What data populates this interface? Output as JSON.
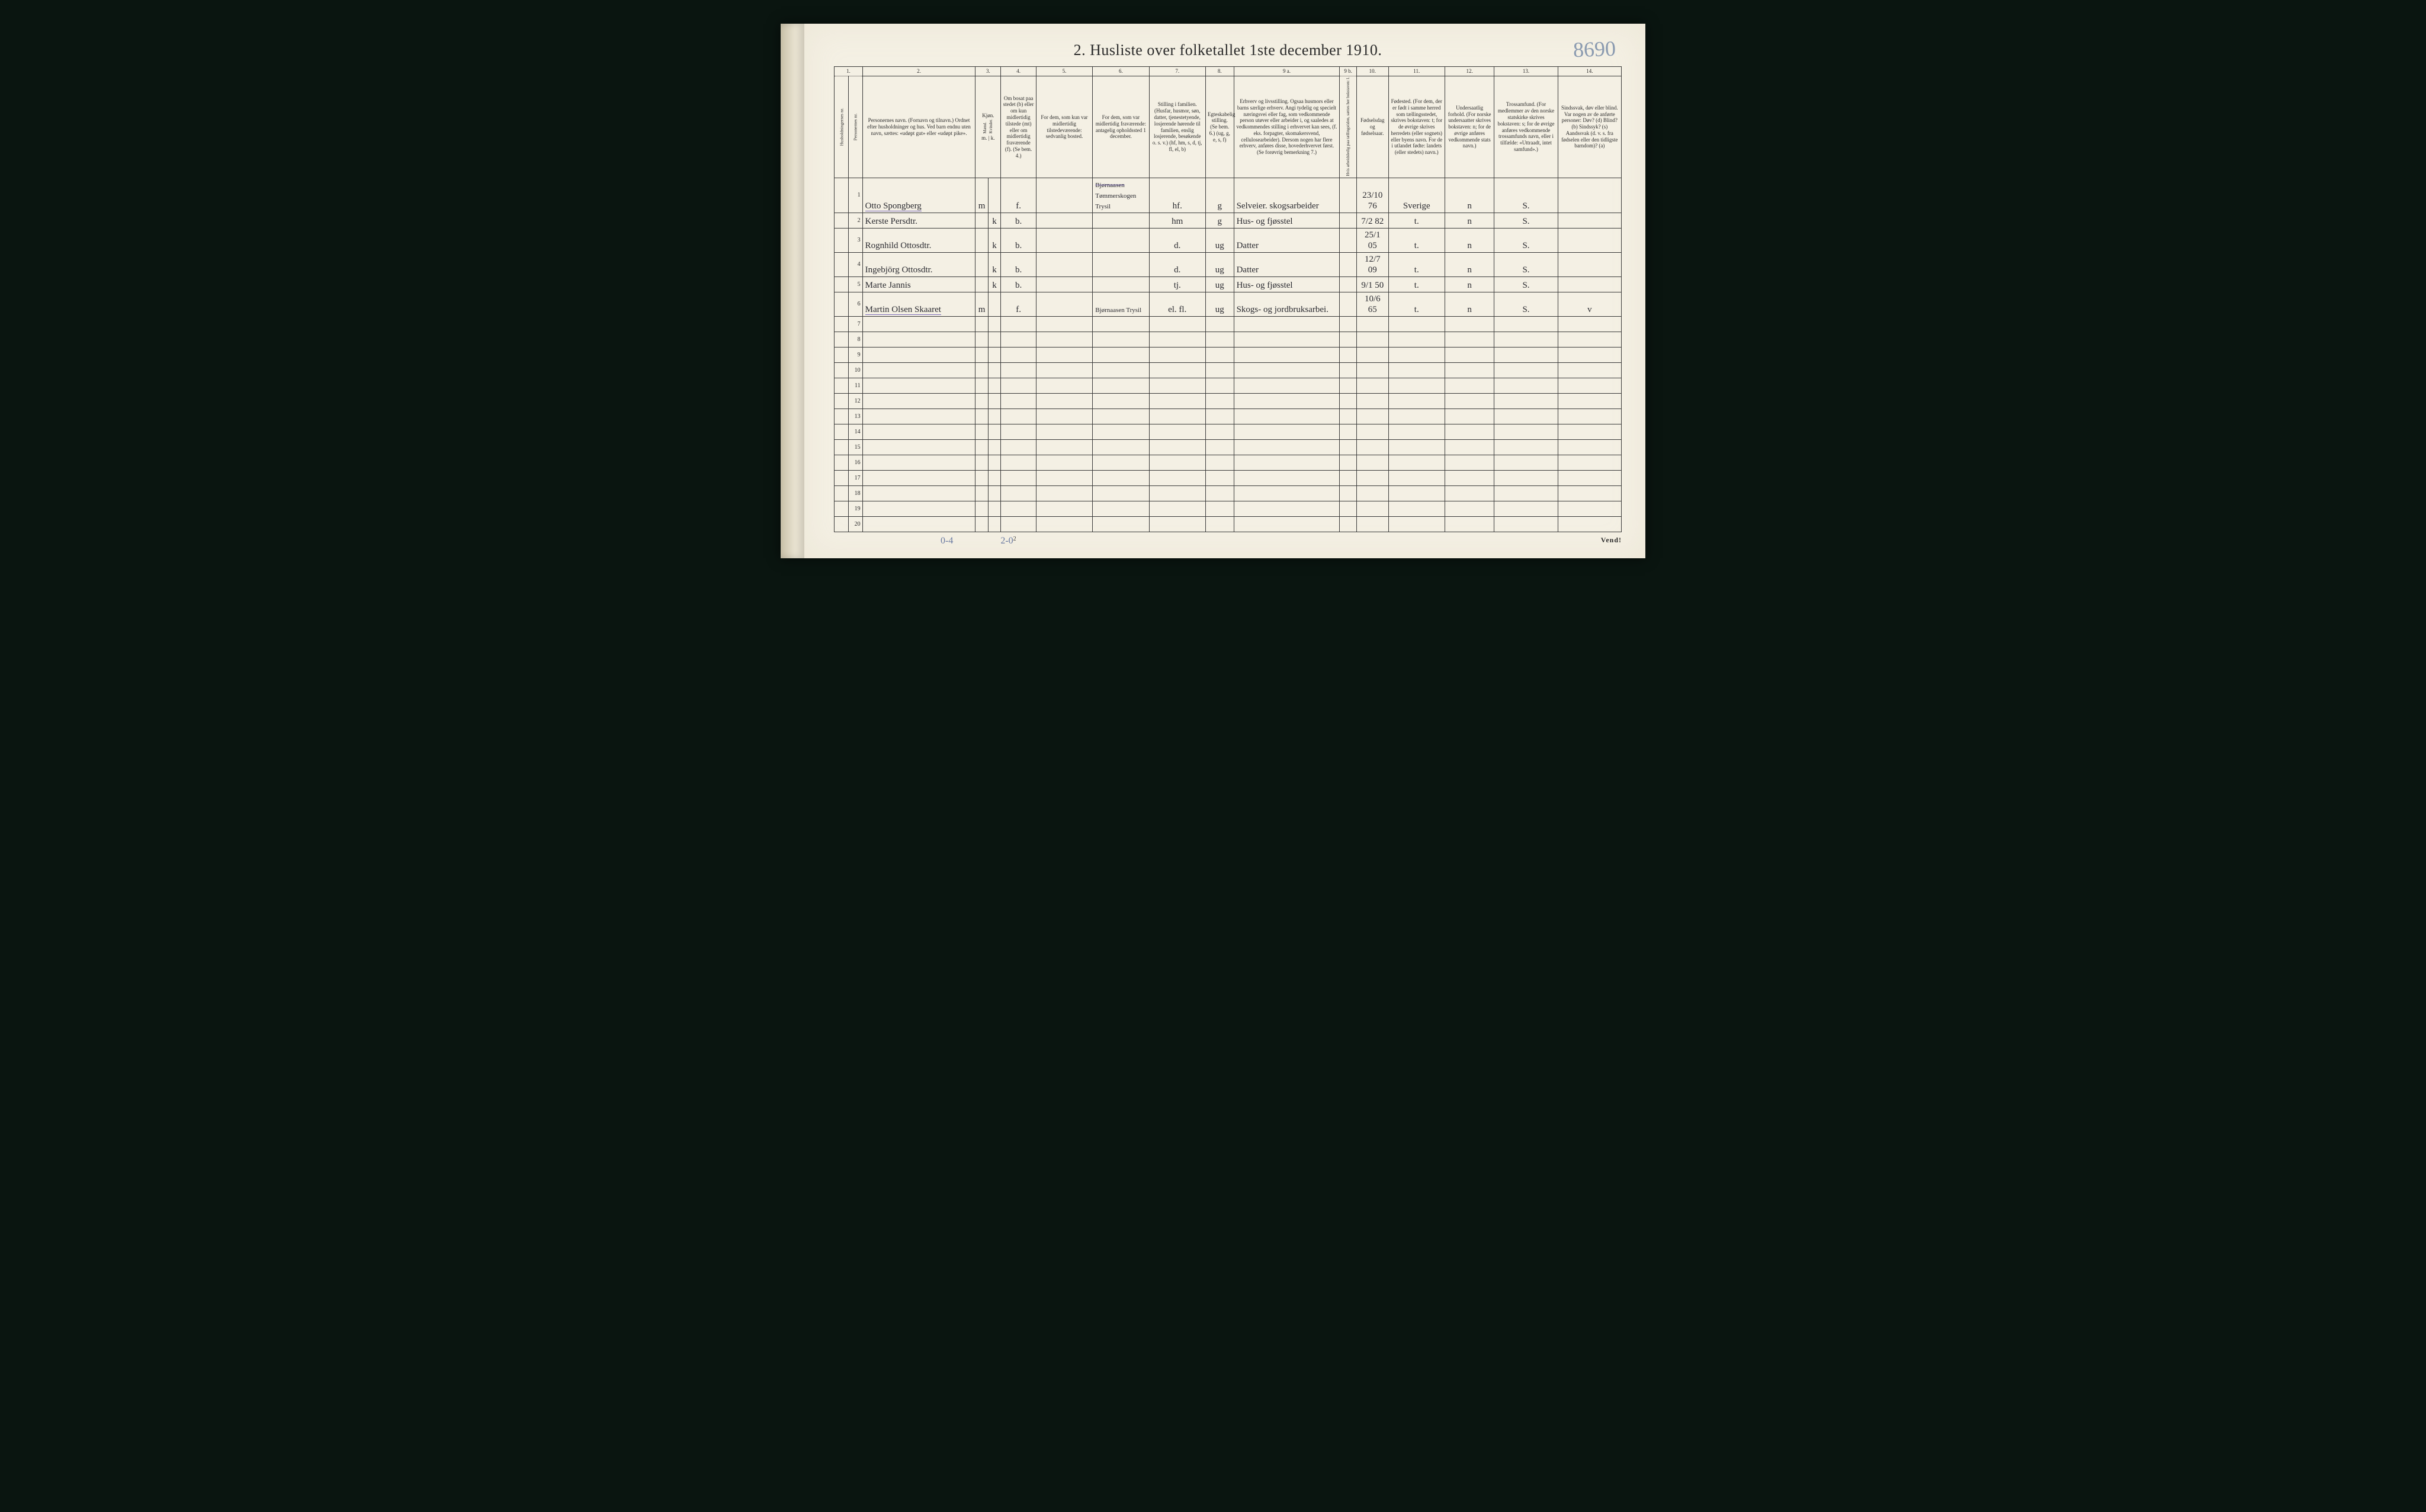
{
  "page": {
    "title": "2.  Husliste over folketallet 1ste december 1910.",
    "handwritten_corner": "8690",
    "printed_page_number": "2",
    "vend": "Vend!",
    "footer_notes": {
      "left": "0-4",
      "middle": "2-0"
    },
    "background_color": "#f4f0e4",
    "ink_color": "#2a2a2a",
    "handwriting_color": "#2a2a30",
    "purple_underline": "#7a6ab8",
    "border_color": "#3a3a3a"
  },
  "columns": {
    "numbers": [
      "1.",
      "2.",
      "3.",
      "4.",
      "5.",
      "6.",
      "7.",
      "8.",
      "9 a.",
      "9 b.",
      "10.",
      "11.",
      "12.",
      "13.",
      "14."
    ],
    "widths_pct": [
      2.0,
      2.0,
      16,
      1.8,
      1.8,
      5,
      8,
      8,
      8,
      4,
      15,
      2.4,
      4.5,
      8,
      7,
      9,
      9
    ],
    "c1a": "Husholdningernes nr.",
    "c1b": "Personernes nr.",
    "c2": "Personernes navn.\n(Fornavn og tilnavn.)\nOrdnet efter husholdninger og hus.\nVed barn endnu uten navn, sættes: «udøpt gut» eller «udøpt pike».",
    "c3": "Kjøn.",
    "c3m": "Mænd.",
    "c3k": "Kvinder.",
    "c3foot": "m. | k.",
    "c4": "Om bosat paa stedet (b) eller om kun midlertidig tilstede (mt) eller om midlertidig fraværende (f).\n(Se bem. 4.)",
    "c5": "For dem, som kun var midlertidig tilstedeværende:\nsedvanlig bosted.",
    "c6": "For dem, som var midlertidig fraværende:\nantagelig opholdssted 1 december.",
    "c7": "Stilling i familien.\n(Husfar, husmor, søn, datter, tjenestetyende, losjerende hørende til familien, enslig losjerende, besøkende o. s. v.)\n(hf, hm, s, d, tj, fl, el, b)",
    "c8": "Egteskabelig stilling.\n(Se bem. 6.)\n(ug, g, e, s, f)",
    "c9a": "Erhverv og livsstilling.\nOgsaa husmors eller barns særlige erhverv. Angi tydelig og specielt næringsvei eller fag, som vedkommende person utøver eller arbeider i, og saaledes at vedkommendes stilling i erhvervet kan sees, (f. eks. forpagter, skomakersvend, cellulosearbeider). Dersom nogen har flere erhverv, anføres disse, hovederhvervet først.\n(Se forøvrig bemerkning 7.)",
    "c9b": "Hvis arbeidsledig paa tællingstiden, sættes her bokstaven: l.",
    "c10": "Fødselsdag og fødselsaar.",
    "c11": "Fødested.\n(For dem, der er født i samme herred som tællingsstedet, skrives bokstaven: t; for de øvrige skrives herredets (eller sognets) eller byens navn. For de i utlandet fødte: landets (eller stedets) navn.)",
    "c12": "Undersaatlig forhold.\n(For norske undersaatter skrives bokstaven: n; for de øvrige anføres vedkommende stats navn.)",
    "c13": "Trossamfund.\n(For medlemmer av den norske statskirke skrives bokstaven: s; for de øvrige anføres vedkommende trossamfunds navn, eller i tilfælde: «Uttraadt, intet samfund».)",
    "c14": "Sindssvak, døv eller blind.\nVar nogen av de anførte personer:\nDøv? (d)\nBlind? (b)\nSindssyk? (s)\nAandssvak (d. v. s. fra fødselen eller den tidligste barndom)? (a)"
  },
  "rows": [
    {
      "hh": "",
      "pn": "1",
      "name": "Otto Spongberg",
      "sex_m": "m",
      "sex_k": "",
      "res": "f.",
      "c5": "",
      "c6": "Tømmerskogen  Trysil",
      "c6_struck": "Bjørnaasen",
      "c7": "hf.",
      "c8": "g",
      "c9a": "Selveier. skogsarbeider",
      "c9b": "",
      "c10": "23/10 76",
      "c11": "Sverige",
      "c12": "n",
      "c13": "S.",
      "c14": "",
      "underline_name": true
    },
    {
      "hh": "",
      "pn": "2",
      "name": "Kerste Persdtr.",
      "sex_m": "",
      "sex_k": "k",
      "res": "b.",
      "c5": "",
      "c6": "",
      "c7": "hm",
      "c8": "g",
      "c9a": "Hus- og fjøsstel",
      "c9b": "",
      "c10": "7/2 82",
      "c11": "t.",
      "c12": "n",
      "c13": "S.",
      "c14": ""
    },
    {
      "hh": "",
      "pn": "3",
      "name": "Rognhild Ottosdtr.",
      "sex_m": "",
      "sex_k": "k",
      "res": "b.",
      "c5": "",
      "c6": "",
      "c7": "d.",
      "c8": "ug",
      "c9a": "Datter",
      "c9b": "",
      "c10": "25/1 05",
      "c11": "t.",
      "c12": "n",
      "c13": "S.",
      "c14": ""
    },
    {
      "hh": "",
      "pn": "4",
      "name": "Ingebjörg Ottosdtr.",
      "sex_m": "",
      "sex_k": "k",
      "res": "b.",
      "c5": "",
      "c6": "",
      "c7": "d.",
      "c8": "ug",
      "c9a": "Datter",
      "c9b": "",
      "c10": "12/7 09",
      "c11": "t.",
      "c12": "n",
      "c13": "S.",
      "c14": ""
    },
    {
      "hh": "",
      "pn": "5",
      "name": "Marte Jannis",
      "sex_m": "",
      "sex_k": "k",
      "res": "b.",
      "c5": "",
      "c6": "",
      "c7": "tj.",
      "c8": "ug",
      "c9a": "Hus- og fjøsstel",
      "c9b": "",
      "c10": "9/1 50",
      "c11": "t.",
      "c12": "n",
      "c13": "S.",
      "c14": ""
    },
    {
      "hh": "",
      "pn": "6",
      "name": "Martin Olsen Skaaret",
      "sex_m": "m",
      "sex_k": "",
      "res": "f.",
      "c5": "",
      "c6": "Bjørnaasen  Trysil",
      "c7": "el. fl.",
      "c8": "ug",
      "c9a": "Skogs- og jordbruksarbei.",
      "c9b": "",
      "c10": "10/6 65",
      "c11": "t.",
      "c12": "n",
      "c13": "S.",
      "c14": "v",
      "underline_name": true
    }
  ],
  "empty_row_numbers": [
    "7",
    "8",
    "9",
    "10",
    "11",
    "12",
    "13",
    "14",
    "15",
    "16",
    "17",
    "18",
    "19",
    "20"
  ]
}
